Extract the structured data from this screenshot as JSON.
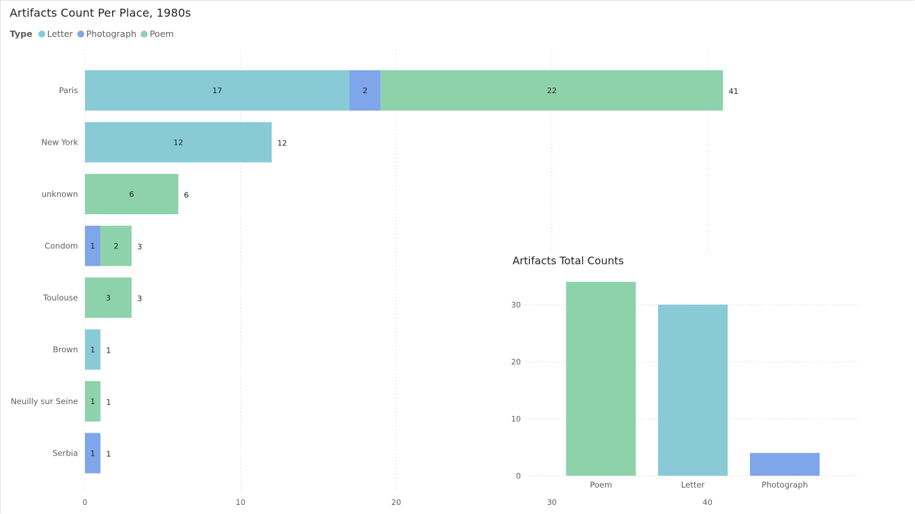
{
  "colors": {
    "Letter": "#88CBD6",
    "Photograph": "#7FA5EA",
    "Poem": "#8DD2AB",
    "gridline": "#c8c6c4"
  },
  "chart_data": [
    {
      "type": "bar",
      "orientation": "horizontal",
      "stacked": true,
      "title": "Artifacts Count Per Place, 1980s",
      "legend": {
        "title": "Type",
        "position": "top-left",
        "entries": [
          "Letter",
          "Photograph",
          "Poem"
        ]
      },
      "categories": [
        "Paris",
        "New York",
        "unknown",
        "Condom",
        "Toulouse",
        "Brown",
        "Neuilly sur Seine",
        "Serbia"
      ],
      "series": [
        {
          "name": "Letter",
          "values": [
            17,
            12,
            0,
            0,
            0,
            1,
            0,
            0
          ]
        },
        {
          "name": "Photograph",
          "values": [
            2,
            0,
            0,
            1,
            0,
            0,
            0,
            1
          ]
        },
        {
          "name": "Poem",
          "values": [
            22,
            0,
            6,
            2,
            3,
            0,
            1,
            0
          ]
        }
      ],
      "totals": [
        41,
        12,
        6,
        3,
        3,
        1,
        1,
        1
      ],
      "xlabel": "",
      "ylabel": "",
      "xlim": [
        0,
        40
      ],
      "xticks": [
        0,
        10,
        20,
        30,
        40
      ],
      "grid": true
    },
    {
      "type": "bar",
      "orientation": "vertical",
      "title": "Artifacts Total Counts",
      "categories": [
        "Poem",
        "Letter",
        "Photograph"
      ],
      "values": [
        34,
        30,
        4
      ],
      "series_colors": [
        "Poem",
        "Letter",
        "Photograph"
      ],
      "xlabel": "",
      "ylabel": "",
      "ylim": [
        0,
        30
      ],
      "yticks": [
        0,
        10,
        20,
        30
      ],
      "grid": true
    }
  ]
}
